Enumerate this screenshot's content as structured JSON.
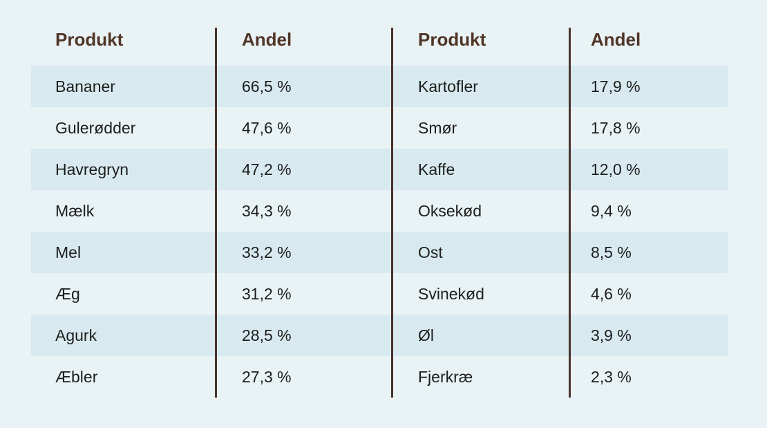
{
  "style": {
    "page_background": "#e9f2f4",
    "stripe_color": "#d8eaf0",
    "header_text_color": "#4f3527",
    "divider_color": "#47322a",
    "body_text_color": "#1d1e1c"
  },
  "table": {
    "headers": {
      "product_left": "Produkt",
      "share_left": "Andel",
      "product_right": "Produkt",
      "share_right": "Andel"
    },
    "rows": [
      {
        "product_left": "Bananer",
        "share_left": "66,5 %",
        "product_right": "Kartofler",
        "share_right": "17,9 %"
      },
      {
        "product_left": "Gulerødder",
        "share_left": "47,6 %",
        "product_right": "Smør",
        "share_right": "17,8 %"
      },
      {
        "product_left": "Havregryn",
        "share_left": "47,2 %",
        "product_right": "Kaffe",
        "share_right": "12,0 %"
      },
      {
        "product_left": "Mælk",
        "share_left": "34,3 %",
        "product_right": "Oksekød",
        "share_right": "9,4 %"
      },
      {
        "product_left": "Mel",
        "share_left": "33,2 %",
        "product_right": "Ost",
        "share_right": "8,5 %"
      },
      {
        "product_left": "Æg",
        "share_left": "31,2 %",
        "product_right": "Svinekød",
        "share_right": "4,6 %"
      },
      {
        "product_left": "Agurk",
        "share_left": "28,5 %",
        "product_right": "Øl",
        "share_right": "3,9 %"
      },
      {
        "product_left": "Æbler",
        "share_left": "27,3 %",
        "product_right": "Fjerkræ",
        "share_right": "2,3 %"
      }
    ]
  },
  "chart_data": {
    "type": "table",
    "columns": [
      "Produkt",
      "Andel"
    ],
    "items": [
      {
        "produkt": "Bananer",
        "andel_pct": 66.5
      },
      {
        "produkt": "Gulerødder",
        "andel_pct": 47.6
      },
      {
        "produkt": "Havregryn",
        "andel_pct": 47.2
      },
      {
        "produkt": "Mælk",
        "andel_pct": 34.3
      },
      {
        "produkt": "Mel",
        "andel_pct": 33.2
      },
      {
        "produkt": "Æg",
        "andel_pct": 31.2
      },
      {
        "produkt": "Agurk",
        "andel_pct": 28.5
      },
      {
        "produkt": "Æbler",
        "andel_pct": 27.3
      },
      {
        "produkt": "Kartofler",
        "andel_pct": 17.9
      },
      {
        "produkt": "Smør",
        "andel_pct": 17.8
      },
      {
        "produkt": "Kaffe",
        "andel_pct": 12.0
      },
      {
        "produkt": "Oksekød",
        "andel_pct": 9.4
      },
      {
        "produkt": "Ost",
        "andel_pct": 8.5
      },
      {
        "produkt": "Svinekød",
        "andel_pct": 4.6
      },
      {
        "produkt": "Øl",
        "andel_pct": 3.9
      },
      {
        "produkt": "Fjerkræ",
        "andel_pct": 2.3
      }
    ]
  }
}
